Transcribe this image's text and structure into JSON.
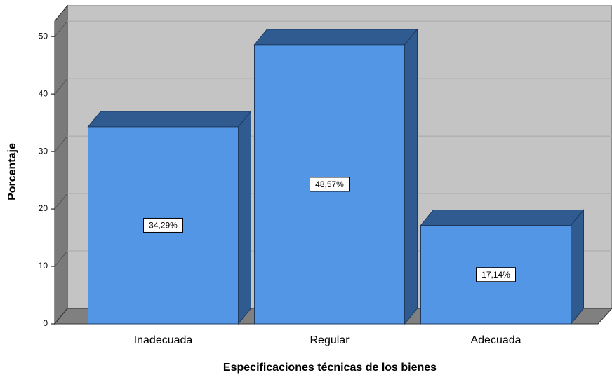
{
  "chart_data": {
    "type": "bar",
    "categories": [
      "Inadecuada",
      "Regular",
      "Adecuada"
    ],
    "values": [
      34.29,
      48.57,
      17.14
    ],
    "value_labels": [
      "34,29%",
      "48,57%",
      "17,14%"
    ],
    "color": "#5496e6",
    "x_label": "Especificaciones técnicas de los bienes",
    "y_label": "Porcentaje",
    "ylim": [
      0,
      52.7
    ],
    "yticks": [
      0,
      10,
      20,
      30,
      40,
      50
    ],
    "grid": true
  }
}
